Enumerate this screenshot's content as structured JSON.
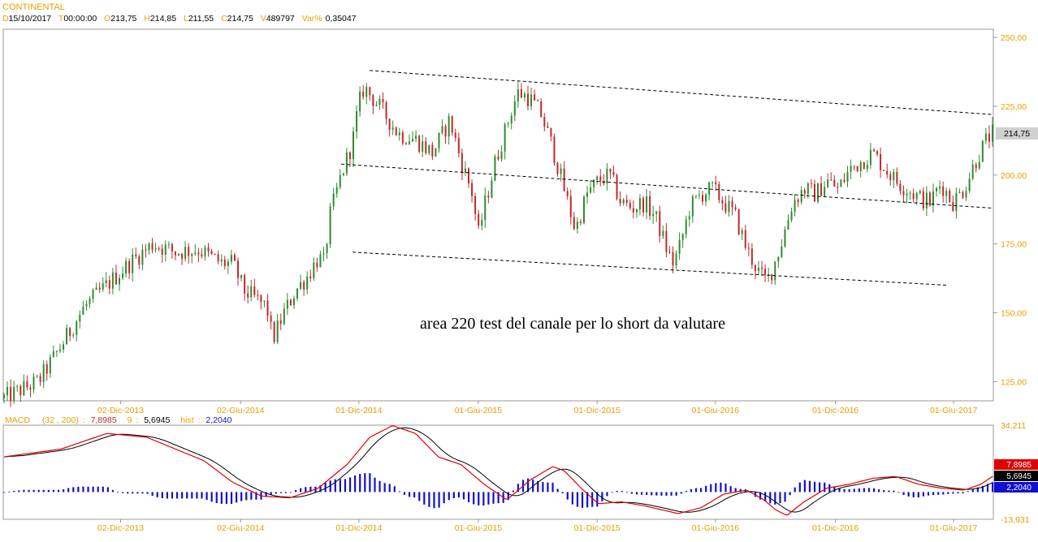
{
  "header": {
    "symbol": "CONTINENTAL",
    "fields": [
      {
        "key": "D",
        "value": "15/10/2017"
      },
      {
        "key": "T",
        "value": "00:00:00"
      },
      {
        "key": "O",
        "value": "213,75"
      },
      {
        "key": "H",
        "value": "214,85"
      },
      {
        "key": "L",
        "value": "211,55"
      },
      {
        "key": "C",
        "value": "214,75"
      },
      {
        "key": "V",
        "value": "489797"
      },
      {
        "key": "Var%",
        "value": "0,35047"
      }
    ]
  },
  "annotation": "area 220 test del canale per lo short da valutare",
  "colors": {
    "label_orange": "#e8a000",
    "up_candle": "#2e8b2e",
    "down_candle": "#c0282a",
    "macd_line": "#e00000",
    "signal_line": "#000000",
    "hist": "#1010d0",
    "axis": "#999999",
    "last_bg": "#d0d0d0"
  },
  "chart_data": [
    {
      "type": "candlestick",
      "ylim": [
        118,
        253
      ],
      "y_ticks": [
        {
          "value": 250,
          "label": "250,00"
        },
        {
          "value": 225,
          "label": "225,00"
        },
        {
          "value": 200,
          "label": "200,00"
        },
        {
          "value": 175,
          "label": "175,00"
        },
        {
          "value": 150,
          "label": "150,00"
        },
        {
          "value": 125,
          "label": "125,00"
        }
      ],
      "x_ticks": [
        "02-Dic-2013",
        "02-Giu-2014",
        "01-Dic-2014",
        "01-Giu-2015",
        "01-Dic-2015",
        "01-Giu-2016",
        "01-Dic-2016",
        "01-Giu-2017"
      ],
      "last_value_label": "214,75",
      "price_path": [
        [
          0,
          119
        ],
        [
          6,
          125
        ],
        [
          10,
          138
        ],
        [
          14,
          152
        ],
        [
          18,
          160
        ],
        [
          22,
          168
        ],
        [
          26,
          175
        ],
        [
          30,
          172
        ],
        [
          34,
          173
        ],
        [
          38,
          168
        ],
        [
          40,
          168
        ],
        [
          42,
          158
        ],
        [
          44,
          155
        ],
        [
          46,
          152
        ],
        [
          47,
          140
        ],
        [
          49,
          150
        ],
        [
          51,
          158
        ],
        [
          53,
          163
        ],
        [
          55,
          170
        ],
        [
          56,
          168
        ],
        [
          57,
          185
        ],
        [
          59,
          200
        ],
        [
          61,
          212
        ],
        [
          62,
          225
        ],
        [
          63,
          232
        ],
        [
          66,
          224
        ],
        [
          69,
          215
        ],
        [
          72,
          213
        ],
        [
          75,
          208
        ],
        [
          78,
          220
        ],
        [
          80,
          205
        ],
        [
          82,
          193
        ],
        [
          83,
          178
        ],
        [
          84,
          188
        ],
        [
          86,
          205
        ],
        [
          88,
          218
        ],
        [
          89,
          225
        ],
        [
          90,
          230
        ],
        [
          92,
          228
        ],
        [
          94,
          222
        ],
        [
          96,
          210
        ],
        [
          98,
          195
        ],
        [
          100,
          180
        ],
        [
          102,
          193
        ],
        [
          104,
          198
        ],
        [
          106,
          200
        ],
        [
          108,
          190
        ],
        [
          110,
          188
        ],
        [
          112,
          190
        ],
        [
          114,
          185
        ],
        [
          116,
          173
        ],
        [
          117,
          168
        ],
        [
          118,
          172
        ],
        [
          120,
          188
        ],
        [
          122,
          193
        ],
        [
          124,
          195
        ],
        [
          126,
          190
        ],
        [
          128,
          185
        ],
        [
          130,
          173
        ],
        [
          132,
          165
        ],
        [
          133,
          162
        ],
        [
          134,
          163
        ],
        [
          136,
          175
        ],
        [
          138,
          190
        ],
        [
          140,
          195
        ],
        [
          142,
          193
        ],
        [
          144,
          198
        ],
        [
          146,
          195
        ],
        [
          148,
          202
        ],
        [
          150,
          205
        ],
        [
          152,
          208
        ],
        [
          154,
          203
        ],
        [
          156,
          198
        ],
        [
          158,
          195
        ],
        [
          160,
          192
        ],
        [
          162,
          190
        ],
        [
          164,
          197
        ],
        [
          166,
          190
        ],
        [
          168,
          195
        ],
        [
          170,
          205
        ],
        [
          172,
          213
        ],
        [
          173,
          215
        ]
      ],
      "channel_lines": [
        {
          "x": [
            64,
            173
          ],
          "y": [
            238,
            222
          ]
        },
        {
          "x": [
            59,
            173
          ],
          "y": [
            204,
            188
          ]
        },
        {
          "x": [
            61,
            165
          ],
          "y": [
            172,
            160
          ]
        }
      ]
    },
    {
      "type": "macd",
      "params": "(32 , 200)",
      "ylim": [
        -13.931,
        34.211
      ],
      "y_ticks": [
        {
          "value": 34.211,
          "label": "34,211"
        },
        {
          "value": -13.931,
          "label": "-13,931"
        }
      ],
      "label": "MACD",
      "signal_period": "9",
      "hist_label": "hist",
      "values": {
        "macd": "7,8985",
        "signal": "5,6945",
        "hist": "2,2040"
      },
      "macd_path": [
        [
          0,
          18
        ],
        [
          10,
          22
        ],
        [
          18,
          30
        ],
        [
          25,
          28
        ],
        [
          30,
          22
        ],
        [
          35,
          16
        ],
        [
          40,
          5
        ],
        [
          45,
          -2
        ],
        [
          50,
          -3
        ],
        [
          55,
          2
        ],
        [
          60,
          14
        ],
        [
          64,
          28
        ],
        [
          68,
          34
        ],
        [
          72,
          30
        ],
        [
          76,
          18
        ],
        [
          80,
          14
        ],
        [
          84,
          4
        ],
        [
          88,
          -4
        ],
        [
          92,
          6
        ],
        [
          96,
          13
        ],
        [
          98,
          11
        ],
        [
          101,
          2
        ],
        [
          104,
          -6
        ],
        [
          108,
          -5
        ],
        [
          112,
          -7
        ],
        [
          118,
          -11
        ],
        [
          122,
          -8
        ],
        [
          126,
          -1
        ],
        [
          130,
          1
        ],
        [
          133,
          -4
        ],
        [
          135,
          -9
        ],
        [
          137,
          -12
        ],
        [
          140,
          -5
        ],
        [
          144,
          2
        ],
        [
          148,
          4
        ],
        [
          152,
          7
        ],
        [
          156,
          8
        ],
        [
          160,
          4
        ],
        [
          164,
          2
        ],
        [
          168,
          1
        ],
        [
          171,
          4
        ],
        [
          173,
          8
        ]
      ]
    }
  ]
}
